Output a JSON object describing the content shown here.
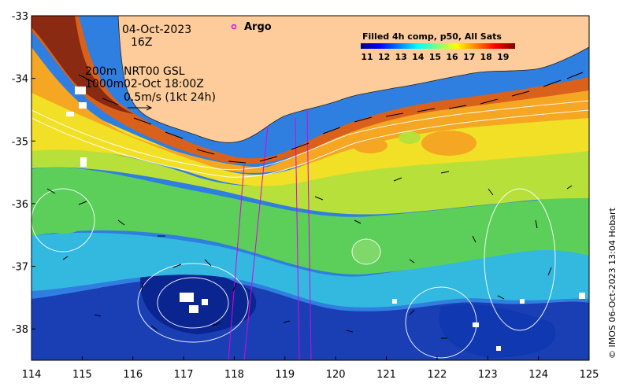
{
  "map": {
    "date": "04-Oct-2023",
    "hour": "16Z",
    "depth_line_1": "200m",
    "depth_line_2": "1000m",
    "product_line_1": "NRT00 GSL",
    "product_line_2": "02-Oct 18:00Z",
    "vector_scale": "0.5m/s (1kt 24h)",
    "argo_label": "Argo",
    "credit": "© IMOS 06-Oct-2023 13:04 Hobart",
    "lon_ticks": [
      "114",
      "115",
      "116",
      "117",
      "118",
      "119",
      "120",
      "121",
      "122",
      "123",
      "124",
      "125"
    ],
    "lat_ticks": [
      "-33",
      "-34",
      "-35",
      "-36",
      "-37",
      "-38"
    ],
    "lon_range": [
      114,
      125
    ],
    "lat_range": [
      -38.5,
      -33
    ],
    "land_color": "#fdcc9a",
    "argo_color": "#e000e0"
  },
  "legend": {
    "title": "Filled 4h comp, p50, All Sats",
    "ticks": [
      "11",
      "12",
      "13",
      "14",
      "15",
      "16",
      "17",
      "18",
      "19"
    ],
    "colors": [
      "#00007f",
      "#0000ff",
      "#007fff",
      "#00ffff",
      "#7fff7f",
      "#ffff00",
      "#ff7f00",
      "#ff0000",
      "#7f0000"
    ]
  }
}
